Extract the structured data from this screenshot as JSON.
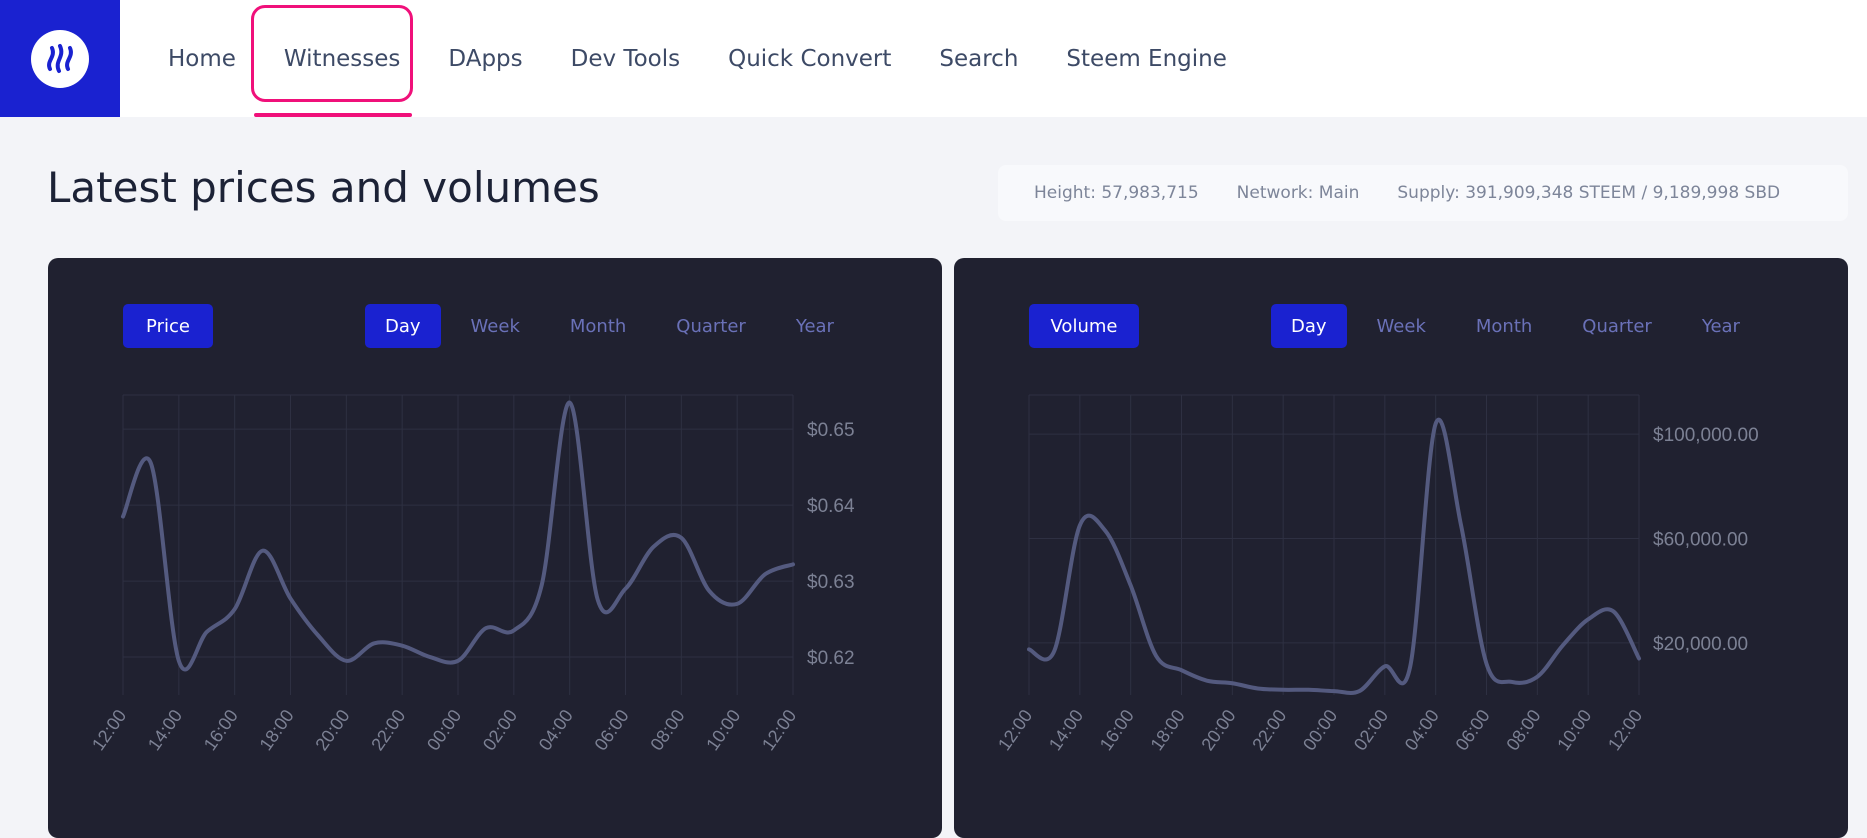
{
  "nav": {
    "items": [
      {
        "label": "Home",
        "name": "nav-home"
      },
      {
        "label": "Witnesses",
        "name": "nav-witnesses"
      },
      {
        "label": "DApps",
        "name": "nav-dapps"
      },
      {
        "label": "Dev Tools",
        "name": "nav-dev-tools"
      },
      {
        "label": "Quick Convert",
        "name": "nav-quick-convert"
      },
      {
        "label": "Search",
        "name": "nav-search"
      },
      {
        "label": "Steem Engine",
        "name": "nav-steem-engine"
      }
    ],
    "active": "Witnesses",
    "logo_icon": "steem-logo-icon"
  },
  "page": {
    "title": "Latest prices and volumes"
  },
  "stats": {
    "height": "Height: 57,983,715",
    "network": "Network: Main",
    "supply": "Supply: 391,909,348 STEEM / 9,189,998 SBD"
  },
  "colors": {
    "brand": "#1a22d0",
    "highlight": "#f0107a",
    "panel_bg": "#202130",
    "line": "#545a7f",
    "grid": "#2e3042",
    "tick": "#7c8194"
  },
  "price_panel": {
    "metric_label": "Price",
    "ranges": [
      "Day",
      "Week",
      "Month",
      "Quarter",
      "Year"
    ],
    "active_range": "Day"
  },
  "volume_panel": {
    "metric_label": "Volume",
    "ranges": [
      "Day",
      "Week",
      "Month",
      "Quarter",
      "Year"
    ],
    "active_range": "Day"
  },
  "chart_data": [
    {
      "type": "line",
      "name": "price-chart",
      "categories": [
        "12:00",
        "14:00",
        "16:00",
        "18:00",
        "20:00",
        "22:00",
        "00:00",
        "02:00",
        "04:00",
        "06:00",
        "08:00",
        "10:00",
        "12:00"
      ],
      "y_tick_labels": [
        "$0.65",
        "$0.64",
        "$0.63",
        "$0.62"
      ],
      "y_ticks": [
        0.65,
        0.64,
        0.63,
        0.62
      ],
      "ylim": [
        0.615,
        0.6545
      ],
      "grid": true,
      "x": [
        0,
        0.5,
        1,
        1.5,
        2,
        2.5,
        3,
        3.5,
        4,
        4.5,
        5,
        5.5,
        6,
        6.5,
        7,
        7.5,
        8,
        8.5,
        9,
        9.5,
        10,
        10.5,
        11,
        11.5,
        12
      ],
      "values": [
        0.6385,
        0.6455,
        0.6195,
        0.6233,
        0.6263,
        0.634,
        0.6277,
        0.6228,
        0.6195,
        0.6218,
        0.6215,
        0.62,
        0.6195,
        0.6238,
        0.6235,
        0.6295,
        0.6535,
        0.6276,
        0.629,
        0.6345,
        0.6357,
        0.6287,
        0.627,
        0.6309,
        0.6322
      ]
    },
    {
      "type": "line",
      "name": "volume-chart",
      "categories": [
        "12:00",
        "14:00",
        "16:00",
        "18:00",
        "20:00",
        "22:00",
        "00:00",
        "02:00",
        "04:00",
        "06:00",
        "08:00",
        "10:00",
        "12:00"
      ],
      "y_tick_labels": [
        "$100,000.00",
        "$60,000.00",
        "$20,000.00"
      ],
      "y_ticks": [
        100000,
        60000,
        20000
      ],
      "ylim": [
        0,
        115000
      ],
      "grid": true,
      "x": [
        0,
        0.5,
        1,
        1.5,
        2,
        2.5,
        3,
        3.5,
        4,
        4.5,
        5,
        5.5,
        6,
        6.5,
        7,
        7.5,
        8,
        8.5,
        9,
        9.5,
        10,
        10.5,
        11,
        11.5,
        12
      ],
      "values": [
        17500,
        17000,
        65000,
        63000,
        42000,
        15000,
        9500,
        5500,
        4500,
        2500,
        2000,
        2000,
        1500,
        1500,
        11000,
        11000,
        104000,
        65000,
        12000,
        5000,
        7000,
        19000,
        29000,
        32000,
        14000
      ]
    }
  ]
}
